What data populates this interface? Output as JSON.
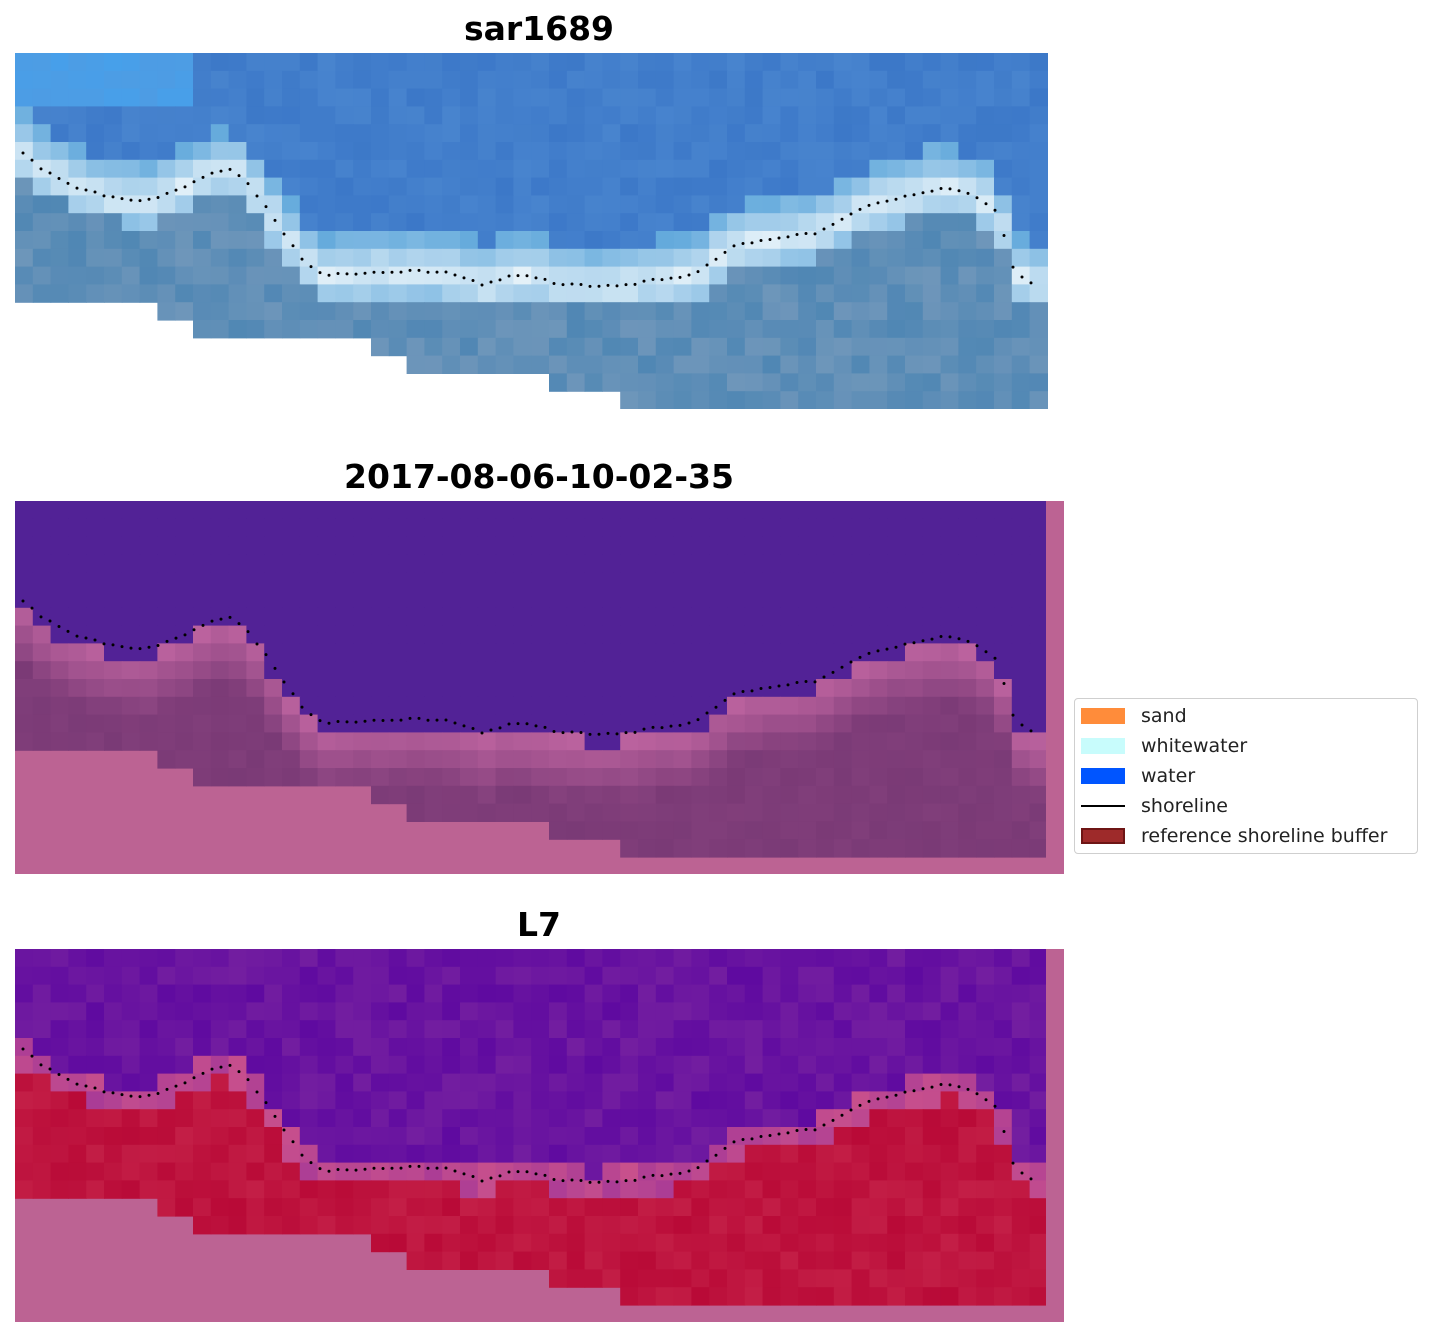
{
  "panels": [
    {
      "title": "sar1689",
      "style": "rgb"
    },
    {
      "title": "2017-08-06-10-02-35",
      "style": "classified"
    },
    {
      "title": "L7",
      "style": "ndwi"
    }
  ],
  "legend": {
    "items": [
      {
        "label": "sand",
        "color": "#ff8c3a"
      },
      {
        "label": "whitewater",
        "color": "#c8fcfc"
      },
      {
        "label": "water",
        "color": "#0055ff"
      },
      {
        "label": "shoreline",
        "color": "#000000"
      },
      {
        "label": "reference shoreline buffer",
        "color": "#9e2a2a"
      }
    ]
  },
  "colors": {
    "nodata_pink": "#bc6393",
    "water_purple": "#522296",
    "sand_mauve": "#7a3a76",
    "ndwi_water": "#7a22a0",
    "ndwi_land": "#be1040"
  }
}
